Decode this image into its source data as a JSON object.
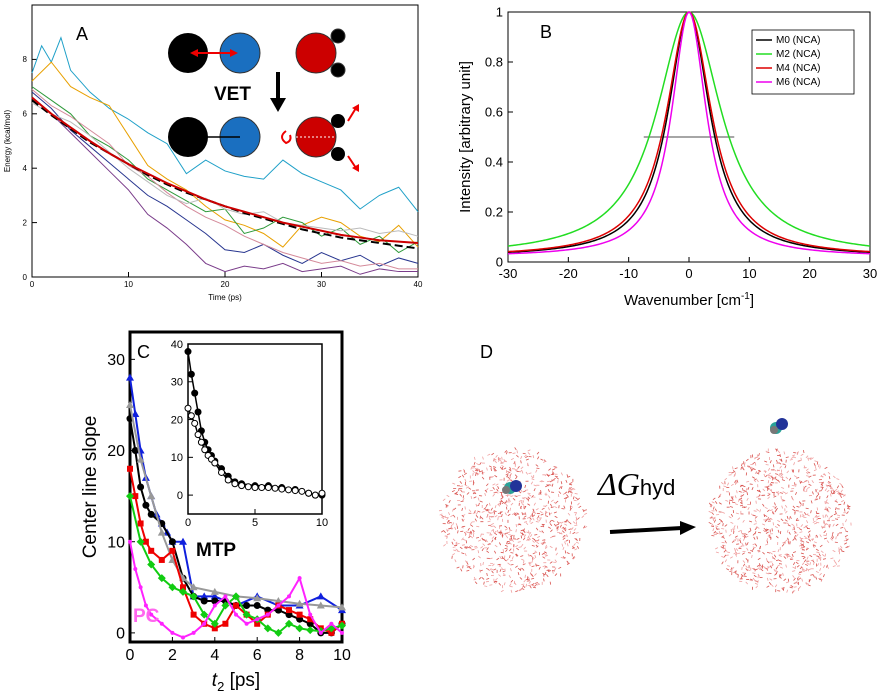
{
  "panels": {
    "A": {
      "label": "A",
      "annotation": "VET",
      "chart_data": {
        "type": "line",
        "xlabel": "Time (ps)",
        "ylabel": "Energy (kcal/mol)",
        "xlim": [
          0,
          40
        ],
        "ylim": [
          0,
          10
        ],
        "xticks": [
          0,
          10,
          20,
          30,
          40
        ],
        "yticks": [
          0,
          2,
          4,
          6,
          8
        ],
        "series": [
          {
            "name": "fit-black",
            "color": "#000000",
            "dashed": true,
            "x": [
              0,
              2,
              4,
              6,
              8,
              10,
              12,
              14,
              16,
              18,
              20,
              22,
              24,
              26,
              28,
              30,
              32,
              34,
              36,
              38,
              40
            ],
            "y": [
              6.5,
              5.95,
              5.45,
              4.95,
              4.55,
              4.15,
              3.75,
              3.4,
              3.1,
              2.85,
              2.6,
              2.35,
              2.15,
              1.95,
              1.75,
              1.6,
              1.45,
              1.35,
              1.25,
              1.15,
              1.05
            ]
          },
          {
            "name": "avg-red",
            "color": "#cc0000",
            "x": [
              0,
              2,
              4,
              6,
              8,
              10,
              12,
              14,
              16,
              18,
              20,
              22,
              24,
              26,
              28,
              30,
              32,
              34,
              36,
              38,
              40
            ],
            "y": [
              6.6,
              6.0,
              5.5,
              5.0,
              4.55,
              4.15,
              3.8,
              3.45,
              3.15,
              2.85,
              2.6,
              2.4,
              2.2,
              2.0,
              1.85,
              1.7,
              1.55,
              1.45,
              1.35,
              1.3,
              1.25
            ]
          },
          {
            "name": "cyan",
            "color": "#1fa0c8",
            "x": [
              0,
              1,
              2,
              3,
              4,
              6,
              8,
              10,
              12,
              14,
              16,
              18,
              20,
              22,
              24,
              26,
              28,
              30,
              32,
              34,
              36,
              38,
              40
            ],
            "y": [
              7.5,
              8.5,
              7.9,
              8.8,
              7.6,
              6.8,
              6.2,
              5.8,
              5.3,
              4.9,
              3.8,
              4.3,
              3.9,
              3.7,
              3.6,
              4.3,
              3.8,
              3.5,
              3.2,
              2.5,
              3.0,
              3.3,
              2.4
            ]
          },
          {
            "name": "orange",
            "color": "#e8a000",
            "x": [
              0,
              2,
              4,
              6,
              8,
              10,
              12,
              14,
              16,
              18,
              20,
              22,
              24,
              26,
              28,
              30,
              32,
              34,
              36,
              38,
              40
            ],
            "y": [
              7.2,
              7.9,
              7.0,
              6.6,
              6.3,
              5.2,
              4.1,
              3.6,
              3.2,
              2.6,
              2.1,
              1.9,
              1.6,
              1.1,
              1.9,
              2.2,
              2.0,
              1.5,
              1.3,
              1.9,
              1.1
            ]
          },
          {
            "name": "green",
            "color": "#2e9a3a",
            "x": [
              0,
              2,
              4,
              6,
              8,
              10,
              12,
              14,
              16,
              18,
              20,
              22,
              24,
              26,
              28,
              30,
              32,
              34,
              36,
              38,
              40
            ],
            "y": [
              7.0,
              6.5,
              6.0,
              5.2,
              4.8,
              4.3,
              3.6,
              3.2,
              2.8,
              2.4,
              2.5,
              1.6,
              1.8,
              2.2,
              2.0,
              1.5,
              1.8,
              1.2,
              1.5,
              0.9,
              1.3
            ]
          },
          {
            "name": "blue",
            "color": "#27358f",
            "x": [
              0,
              2,
              4,
              6,
              8,
              10,
              12,
              14,
              16,
              18,
              20,
              22,
              24,
              26,
              28,
              30,
              32,
              34,
              36,
              38,
              40
            ],
            "y": [
              6.8,
              6.2,
              5.4,
              4.8,
              4.2,
              3.6,
              3.0,
              2.6,
              2.1,
              1.6,
              1.0,
              0.9,
              1.2,
              0.8,
              0.5,
              0.9,
              0.6,
              0.8,
              0.4,
              0.7,
              0.5
            ]
          },
          {
            "name": "purple",
            "color": "#7a3c8a",
            "x": [
              0,
              2,
              4,
              6,
              8,
              10,
              12,
              14,
              16,
              18,
              20,
              22,
              24,
              26,
              28,
              30,
              32,
              34,
              36,
              38,
              40
            ],
            "y": [
              6.6,
              6.0,
              5.3,
              4.6,
              3.9,
              3.2,
              2.3,
              1.8,
              1.2,
              0.5,
              0.2,
              0.4,
              0.3,
              0.5,
              0.2,
              0.3,
              0.4,
              0.1,
              0.3,
              0.2,
              0.2
            ]
          },
          {
            "name": "pink",
            "color": "#d48a9a",
            "x": [
              0,
              2,
              4,
              6,
              8,
              10,
              12,
              14,
              16,
              18,
              20,
              22,
              24,
              26,
              28,
              30,
              32,
              34,
              36,
              38,
              40
            ],
            "y": [
              6.9,
              6.3,
              5.9,
              5.4,
              4.9,
              4.1,
              3.7,
              3.1,
              2.6,
              2.2,
              1.9,
              1.5,
              1.2,
              0.9,
              0.7,
              0.5,
              0.6,
              0.4,
              0.5,
              0.3,
              0.3
            ]
          },
          {
            "name": "grey",
            "color": "#bbbbbb",
            "x": [
              0,
              2,
              4,
              6,
              8,
              10,
              12,
              14,
              16,
              18,
              20,
              22,
              24,
              26,
              28,
              30,
              32,
              34,
              36,
              38,
              40
            ],
            "y": [
              6.4,
              6.0,
              5.7,
              5.2,
              4.6,
              4.0,
              3.5,
              3.0,
              2.7,
              2.9,
              2.5,
              2.3,
              2.4,
              2.0,
              1.9,
              1.8,
              1.7,
              1.8,
              1.6,
              1.7,
              1.5
            ]
          }
        ]
      }
    },
    "B": {
      "label": "B",
      "chart_data": {
        "type": "line",
        "xlabel_main": "Wavenumber [cm",
        "xlabel_sup": "-1",
        "xlabel_end": "]",
        "ylabel": "Intensity [arbitrary unit]",
        "xlim": [
          -30,
          30
        ],
        "ylim": [
          0,
          1
        ],
        "xticks": [
          -30,
          -20,
          -10,
          0,
          10,
          20,
          30
        ],
        "yticks": [
          0,
          0.2,
          0.4,
          0.6,
          0.8,
          1
        ],
        "legend_position": "top-right",
        "fwhm_line": {
          "x": [
            -7.5,
            7.5
          ],
          "y": 0.5
        },
        "series": [
          {
            "name": "M0 (NCA)",
            "color": "#000000",
            "center": 0,
            "width": 8.4
          },
          {
            "name": "M2 (NCA)",
            "color": "#22dd22",
            "center": 0,
            "width": 13.0
          },
          {
            "name": "M4 (NCA)",
            "color": "#dd0000",
            "center": 0,
            "width": 9.0
          },
          {
            "name": "M6 (NCA)",
            "color": "#ee00ee",
            "center": 0,
            "width": 7.0
          }
        ]
      }
    },
    "C": {
      "label": "C",
      "annotation_mtp": "MTP",
      "annotation_pc": "PC",
      "chart_data": {
        "type": "line",
        "xlabel_main": "t",
        "xlabel_sub": "2",
        "xlabel_end": " [ps]",
        "ylabel": "Center line slope",
        "xlim": [
          0,
          10
        ],
        "ylim": [
          -1,
          33
        ],
        "xticks": [
          0,
          2,
          4,
          6,
          8,
          10
        ],
        "yticks": [
          0,
          10,
          20,
          30
        ],
        "series": [
          {
            "name": "blue",
            "color": "#1020dd",
            "marker": "triangle",
            "x": [
              0,
              0.25,
              0.5,
              0.75,
              1,
              1.25,
              1.5,
              1.75,
              2,
              2.5,
              3,
              3.5,
              4,
              5,
              6,
              7,
              8,
              9,
              10
            ],
            "y": [
              28,
              24,
              20,
              17,
              15,
              13,
              12,
              11,
              10,
              10,
              4,
              4,
              4,
              3,
              4,
              3,
              3,
              4,
              2.5
            ]
          },
          {
            "name": "black",
            "color": "#000000",
            "marker": "circle",
            "x": [
              0,
              0.25,
              0.5,
              0.75,
              1,
              1.5,
              2,
              2.5,
              3,
              3.5,
              4,
              4.5,
              5,
              5.5,
              6,
              6.5,
              7,
              7.5,
              8,
              8.5,
              9,
              9.5,
              10
            ],
            "y": [
              23.5,
              20,
              16,
              14,
              13,
              12,
              10,
              6,
              4,
              3.5,
              3.5,
              3.5,
              3,
              3,
              3,
              2.5,
              2.5,
              2,
              1.5,
              1,
              0,
              0,
              1
            ]
          },
          {
            "name": "grey",
            "color": "#999999",
            "marker": "triangle",
            "x": [
              0,
              0.5,
              1,
              1.5,
              2,
              2.5,
              3,
              4,
              5,
              6,
              7,
              8,
              9,
              10
            ],
            "y": [
              25,
              19,
              15,
              11,
              8,
              6,
              5,
              4.5,
              4,
              3.8,
              3.5,
              3.2,
              3,
              2.8
            ]
          },
          {
            "name": "red",
            "color": "#ee0000",
            "marker": "square",
            "x": [
              0,
              0.25,
              0.5,
              0.75,
              1,
              1.5,
              2,
              2.5,
              3,
              3.5,
              4,
              4.5,
              5,
              5.5,
              6,
              6.5,
              7,
              7.5,
              8,
              8.5,
              9,
              9.5,
              10
            ],
            "y": [
              18,
              15,
              12,
              10,
              9,
              8,
              9,
              5,
              2,
              1,
              0.5,
              1,
              3,
              2,
              1,
              2,
              3,
              2.5,
              2,
              1.5,
              0.5,
              0,
              1
            ]
          },
          {
            "name": "green",
            "color": "#11cc11",
            "marker": "diamond",
            "x": [
              0,
              0.5,
              1,
              1.5,
              2,
              2.5,
              3,
              3.5,
              4,
              4.5,
              5,
              5.5,
              6,
              6.5,
              7,
              7.5,
              8,
              8.5,
              9,
              9.5,
              10
            ],
            "y": [
              15,
              10,
              7.5,
              6,
              5,
              4.5,
              4,
              2,
              1,
              3,
              4,
              2,
              1.5,
              0.5,
              0,
              1,
              0.5,
              0.3,
              0.2,
              0.5,
              0.8
            ]
          },
          {
            "name": "magenta",
            "color": "#ff22ff",
            "marker": "dot",
            "x": [
              0,
              0.25,
              0.5,
              0.75,
              1,
              1.5,
              2,
              2.5,
              3,
              3.5,
              4,
              4.5,
              5,
              5.5,
              6,
              6.5,
              7,
              7.5,
              8,
              8.5,
              9,
              9.5,
              10
            ],
            "y": [
              10,
              7,
              5,
              3,
              2,
              1,
              0,
              -0.5,
              0,
              1,
              3,
              4,
              2,
              1,
              1.5,
              2,
              3,
              4,
              6,
              2,
              0,
              1,
              0
            ]
          }
        ]
      },
      "inset": {
        "chart_data": {
          "type": "line",
          "xlim": [
            0,
            10
          ],
          "ylim": [
            -5,
            40
          ],
          "xticks": [
            0,
            5,
            10
          ],
          "yticks": [
            0,
            10,
            20,
            30,
            40
          ],
          "series": [
            {
              "name": "filled",
              "color": "#000000",
              "filled": true,
              "x": [
                0,
                0.25,
                0.5,
                0.75,
                1,
                1.25,
                1.5,
                1.75,
                2,
                2.5,
                3,
                3.5,
                4,
                5,
                6,
                7,
                8,
                9,
                9.5,
                10
              ],
              "y": [
                38,
                32,
                27,
                22,
                17,
                14,
                12,
                10.5,
                9,
                7,
                5,
                3.5,
                3,
                2.5,
                2.5,
                2,
                1.5,
                0.5,
                0,
                0
              ]
            },
            {
              "name": "open",
              "color": "#000000",
              "filled": false,
              "x": [
                0,
                0.25,
                0.5,
                0.75,
                1,
                1.25,
                1.5,
                1.75,
                2,
                2.5,
                3,
                3.5,
                4,
                4.5,
                5,
                5.5,
                6,
                6.5,
                7,
                7.5,
                8,
                8.5,
                9,
                9.5,
                10
              ],
              "y": [
                23,
                21,
                19,
                16,
                14,
                12,
                10.5,
                9.5,
                8.5,
                6,
                4,
                3,
                2.5,
                2.2,
                2,
                2,
                2,
                1.8,
                1.6,
                1.4,
                1.2,
                1,
                0.5,
                0,
                0.5
              ]
            }
          ]
        }
      }
    },
    "D": {
      "label": "D",
      "delta_symbol": "ΔG",
      "delta_sub": "hyd"
    }
  }
}
